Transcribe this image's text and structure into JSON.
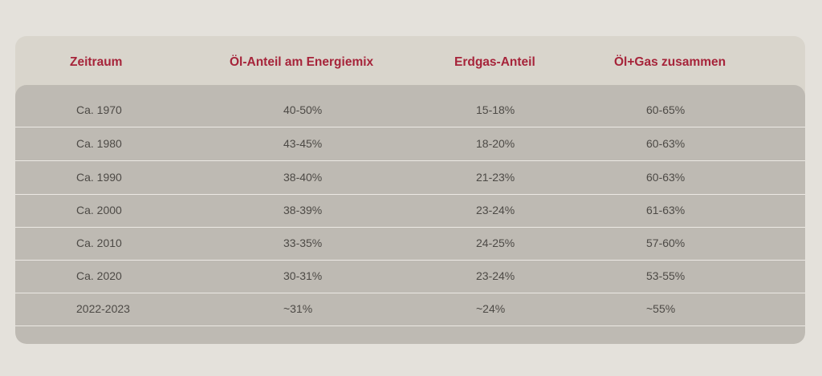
{
  "table": {
    "headers": [
      "Zeitraum",
      "Öl-Anteil am Energiemix",
      "Erdgas-Anteil",
      "Öl+Gas zusammen"
    ],
    "rows": [
      [
        "Ca. 1970",
        "40-50%",
        "15-18%",
        "60-65%"
      ],
      [
        "Ca. 1980",
        "43-45%",
        "18-20%",
        "60-63%"
      ],
      [
        "Ca. 1990",
        "38-40%",
        "21-23%",
        "60-63%"
      ],
      [
        "Ca. 2000",
        "38-39%",
        "23-24%",
        "61-63%"
      ],
      [
        "Ca. 2010",
        "33-35%",
        "24-25%",
        "57-60%"
      ],
      [
        "Ca. 2020",
        "30-31%",
        "23-24%",
        "53-55%"
      ],
      [
        "2022-2023",
        "~31%",
        "~24%",
        "~55%"
      ]
    ]
  },
  "colors": {
    "header_text": "#a6243a",
    "body_text": "#4d4a46",
    "page_background": "#e4e1db",
    "header_background": "#d9d5cc",
    "body_background": "#bebab3"
  }
}
